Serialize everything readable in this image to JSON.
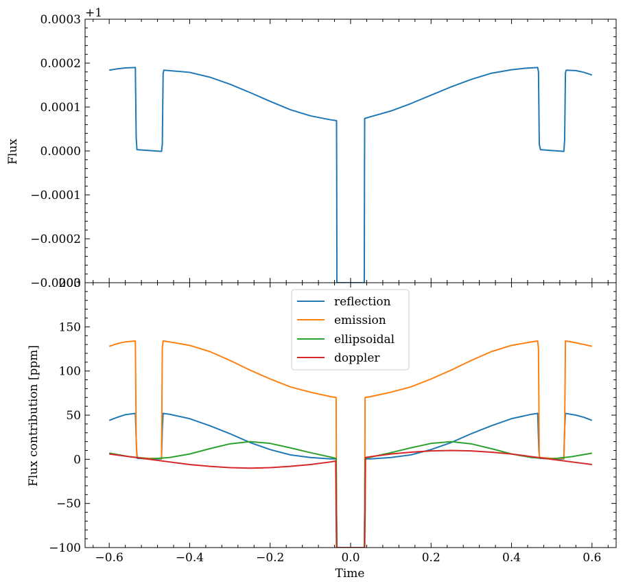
{
  "chart_data": [
    {
      "type": "line",
      "panel": "top",
      "xlim": [
        -0.66,
        0.66
      ],
      "ylim": [
        -0.0003,
        0.0003
      ],
      "ylabel": "Flux",
      "offset_text": "+1",
      "y_ticks": [
        -0.0003,
        -0.0002,
        -0.0001,
        0.0,
        0.0001,
        0.0002,
        0.0003
      ],
      "y_tick_labels": [
        "−0.0003",
        "−0.0002",
        "−0.0001",
        "0.0000",
        "0.0001",
        "0.0002",
        "0.0003"
      ],
      "grid": false,
      "series": [
        {
          "color": "#1f77b4",
          "points": [
            [
              -0.6,
              0.000184
            ],
            [
              -0.58,
              0.000187
            ],
            [
              -0.56,
              0.000189
            ],
            [
              -0.535,
              0.00019
            ],
            [
              -0.533,
              3e-05
            ],
            [
              -0.531,
              3e-06
            ],
            [
              -0.5,
              1e-06
            ],
            [
              -0.47,
              -1e-06
            ],
            [
              -0.468,
              1.5e-05
            ],
            [
              -0.466,
              0.000177
            ],
            [
              -0.464,
              0.000184
            ],
            [
              -0.4,
              0.000179
            ],
            [
              -0.35,
              0.000168
            ],
            [
              -0.3,
              0.000152
            ],
            [
              -0.25,
              0.000133
            ],
            [
              -0.2,
              0.000113
            ],
            [
              -0.15,
              9.4e-05
            ],
            [
              -0.1,
              8e-05
            ],
            [
              -0.05,
              7.1e-05
            ],
            [
              -0.035,
              6.9e-05
            ],
            [
              -0.0345,
              -6.5e-05
            ],
            [
              -0.034,
              -0.0003
            ],
            [
              0.034,
              -0.0003
            ],
            [
              0.0345,
              -6.5e-05
            ],
            [
              0.035,
              7.4e-05
            ],
            [
              0.05,
              7.8e-05
            ],
            [
              0.1,
              9.1e-05
            ],
            [
              0.15,
              0.000108
            ],
            [
              0.2,
              0.000127
            ],
            [
              0.25,
              0.000146
            ],
            [
              0.3,
              0.000163
            ],
            [
              0.35,
              0.000177
            ],
            [
              0.4,
              0.000185
            ],
            [
              0.43,
              0.000188
            ],
            [
              0.465,
              0.00019
            ],
            [
              0.467,
              0.00018
            ],
            [
              0.469,
              1.5e-05
            ],
            [
              0.472,
              3e-06
            ],
            [
              0.5,
              1e-06
            ],
            [
              0.53,
              -1e-06
            ],
            [
              0.532,
              2.5e-05
            ],
            [
              0.534,
              0.000178
            ],
            [
              0.536,
              0.000184
            ],
            [
              0.56,
              0.000183
            ],
            [
              0.58,
              0.000179
            ],
            [
              0.6,
              0.000173
            ]
          ]
        }
      ]
    },
    {
      "type": "line",
      "panel": "bottom",
      "xlim": [
        -0.66,
        0.66
      ],
      "ylim": [
        -100,
        200
      ],
      "xlabel": "Time",
      "ylabel": "Flux contribution [ppm]",
      "x_ticks": [
        -0.6,
        -0.4,
        -0.2,
        0.0,
        0.2,
        0.4,
        0.6
      ],
      "x_tick_labels": [
        "−0.6",
        "−0.4",
        "−0.2",
        "0.0",
        "0.2",
        "0.4",
        "0.6"
      ],
      "y_ticks": [
        -100,
        -50,
        0,
        50,
        100,
        150,
        200
      ],
      "y_tick_labels": [
        "−100",
        "−50",
        "0",
        "50",
        "100",
        "150",
        "200"
      ],
      "grid": false,
      "legend_position": "upper-center",
      "series": [
        {
          "name": "reflection",
          "color": "#1f77b4",
          "points": [
            [
              -0.6,
              44
            ],
            [
              -0.58,
              47.5
            ],
            [
              -0.56,
              50.5
            ],
            [
              -0.535,
              52
            ],
            [
              -0.532,
              10
            ],
            [
              -0.53,
              1
            ],
            [
              -0.5,
              0.5
            ],
            [
              -0.47,
              0.5
            ],
            [
              -0.468,
              35
            ],
            [
              -0.466,
              52
            ],
            [
              -0.45,
              51
            ],
            [
              -0.4,
              46
            ],
            [
              -0.35,
              38
            ],
            [
              -0.3,
              29
            ],
            [
              -0.25,
              19
            ],
            [
              -0.2,
              11
            ],
            [
              -0.15,
              5
            ],
            [
              -0.1,
              2
            ],
            [
              -0.05,
              0.5
            ],
            [
              -0.036,
              0.5
            ],
            [
              -0.035,
              -60
            ],
            [
              -0.034,
              -100
            ],
            [
              0.034,
              -100
            ],
            [
              0.035,
              -60
            ],
            [
              0.036,
              0.5
            ],
            [
              0.05,
              0.5
            ],
            [
              0.1,
              2
            ],
            [
              0.15,
              5
            ],
            [
              0.2,
              11
            ],
            [
              0.25,
              19
            ],
            [
              0.3,
              29
            ],
            [
              0.35,
              38
            ],
            [
              0.4,
              46
            ],
            [
              0.45,
              51
            ],
            [
              0.465,
              52
            ],
            [
              0.468,
              10
            ],
            [
              0.47,
              1
            ],
            [
              0.5,
              0.5
            ],
            [
              0.53,
              0.5
            ],
            [
              0.532,
              35
            ],
            [
              0.534,
              52
            ],
            [
              0.56,
              50
            ],
            [
              0.58,
              47.5
            ],
            [
              0.6,
              44
            ]
          ]
        },
        {
          "name": "emission",
          "color": "#ff7f0e",
          "points": [
            [
              -0.6,
              128
            ],
            [
              -0.58,
              131
            ],
            [
              -0.56,
              133
            ],
            [
              -0.535,
              134
            ],
            [
              -0.533,
              25
            ],
            [
              -0.531,
              2
            ],
            [
              -0.5,
              1
            ],
            [
              -0.47,
              1
            ],
            [
              -0.468,
              126
            ],
            [
              -0.466,
              134
            ],
            [
              -0.45,
              133
            ],
            [
              -0.4,
              129
            ],
            [
              -0.35,
              122
            ],
            [
              -0.3,
              112
            ],
            [
              -0.25,
              101
            ],
            [
              -0.2,
              91
            ],
            [
              -0.15,
              82
            ],
            [
              -0.1,
              76
            ],
            [
              -0.05,
              71
            ],
            [
              -0.036,
              70
            ],
            [
              -0.035,
              -60
            ],
            [
              -0.034,
              -100
            ],
            [
              0.034,
              -100
            ],
            [
              0.035,
              -60
            ],
            [
              0.036,
              70
            ],
            [
              0.05,
              71
            ],
            [
              0.1,
              76
            ],
            [
              0.15,
              82
            ],
            [
              0.2,
              91
            ],
            [
              0.25,
              101
            ],
            [
              0.3,
              112
            ],
            [
              0.35,
              122
            ],
            [
              0.4,
              129
            ],
            [
              0.45,
              133
            ],
            [
              0.465,
              134
            ],
            [
              0.467,
              125
            ],
            [
              0.469,
              2
            ],
            [
              0.5,
              1
            ],
            [
              0.53,
              1
            ],
            [
              0.532,
              30
            ],
            [
              0.534,
              134
            ],
            [
              0.56,
              132
            ],
            [
              0.58,
              130
            ],
            [
              0.6,
              128
            ]
          ]
        },
        {
          "name": "ellipsoidal",
          "color": "#2ca02c",
          "points": [
            [
              -0.6,
              7
            ],
            [
              -0.55,
              3
            ],
            [
              -0.5,
              0.5
            ],
            [
              -0.45,
              2
            ],
            [
              -0.4,
              6
            ],
            [
              -0.35,
              12
            ],
            [
              -0.3,
              17.5
            ],
            [
              -0.25,
              20
            ],
            [
              -0.2,
              18
            ],
            [
              -0.15,
              13
            ],
            [
              -0.1,
              7.5
            ],
            [
              -0.05,
              2.5
            ],
            [
              -0.036,
              1
            ],
            [
              -0.035,
              -60
            ],
            [
              -0.034,
              -100
            ],
            [
              0.034,
              -100
            ],
            [
              0.035,
              -60
            ],
            [
              0.036,
              1
            ],
            [
              0.05,
              2.5
            ],
            [
              0.1,
              7.5
            ],
            [
              0.15,
              13
            ],
            [
              0.2,
              18
            ],
            [
              0.25,
              20
            ],
            [
              0.3,
              17.5
            ],
            [
              0.35,
              12
            ],
            [
              0.4,
              6
            ],
            [
              0.45,
              2
            ],
            [
              0.5,
              0.5
            ],
            [
              0.55,
              3
            ],
            [
              0.6,
              7
            ]
          ]
        },
        {
          "name": "doppler",
          "color": "#d62728",
          "points": [
            [
              -0.6,
              6
            ],
            [
              -0.55,
              3
            ],
            [
              -0.5,
              0
            ],
            [
              -0.45,
              -3
            ],
            [
              -0.4,
              -6
            ],
            [
              -0.35,
              -8
            ],
            [
              -0.3,
              -9.5
            ],
            [
              -0.25,
              -10
            ],
            [
              -0.2,
              -9.5
            ],
            [
              -0.15,
              -8
            ],
            [
              -0.1,
              -6
            ],
            [
              -0.05,
              -3
            ],
            [
              -0.037,
              -2
            ],
            [
              -0.036,
              -60
            ],
            [
              -0.035,
              -100
            ],
            [
              0.035,
              -100
            ],
            [
              0.036,
              -60
            ],
            [
              0.037,
              2
            ],
            [
              0.05,
              3
            ],
            [
              0.1,
              6
            ],
            [
              0.15,
              8
            ],
            [
              0.2,
              9.5
            ],
            [
              0.25,
              10
            ],
            [
              0.3,
              9.5
            ],
            [
              0.35,
              8
            ],
            [
              0.4,
              6
            ],
            [
              0.45,
              3
            ],
            [
              0.5,
              0
            ],
            [
              0.55,
              -3
            ],
            [
              0.6,
              -6
            ]
          ]
        }
      ]
    }
  ]
}
